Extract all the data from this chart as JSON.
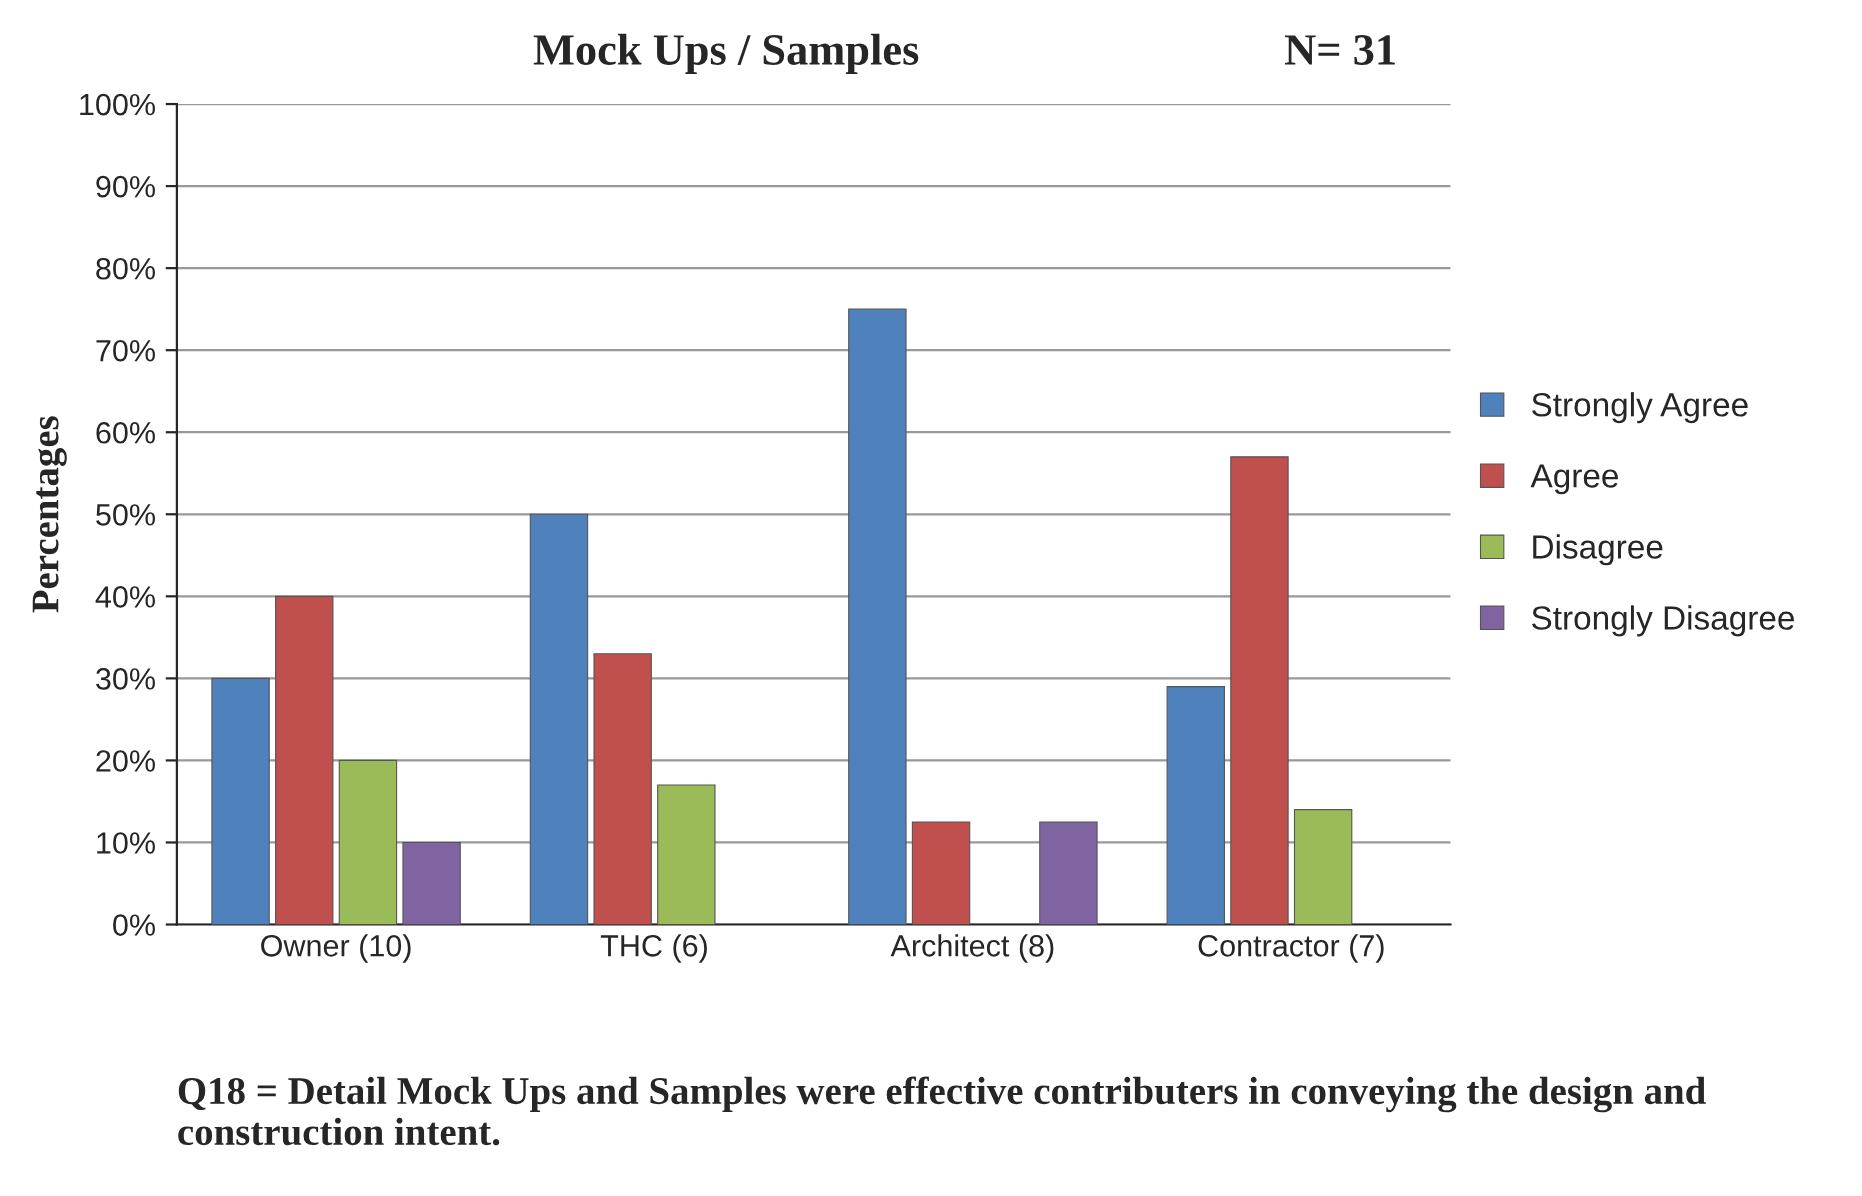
{
  "chart_data": {
    "type": "bar",
    "title": "Mock Ups / Samples",
    "subtitle": "N= 31",
    "ylabel": "Percentages",
    "categories": [
      "Owner (10)",
      "THC (6)",
      "Architect (8)",
      "Contractor (7)"
    ],
    "series": [
      {
        "name": "Strongly Agree",
        "color": "#4f81bd",
        "values": [
          30,
          50,
          75,
          29
        ]
      },
      {
        "name": "Agree",
        "color": "#c0504d",
        "values": [
          40,
          33,
          12.5,
          57
        ]
      },
      {
        "name": "Disagree",
        "color": "#9bbb59",
        "values": [
          20,
          17,
          null,
          14
        ]
      },
      {
        "name": "Strongly Disagree",
        "color": "#8064a2",
        "values": [
          10,
          null,
          12.5,
          null
        ]
      }
    ],
    "ylim": [
      0,
      100
    ],
    "yticks": [
      {
        "value": 0,
        "label": "0%"
      },
      {
        "value": 10,
        "label": "10%"
      },
      {
        "value": 20,
        "label": "20%"
      },
      {
        "value": 30,
        "label": "30%"
      },
      {
        "value": 40,
        "label": "40%"
      },
      {
        "value": 50,
        "label": "50%"
      },
      {
        "value": 60,
        "label": "60%"
      },
      {
        "value": 70,
        "label": "70%"
      },
      {
        "value": 80,
        "label": "80%"
      },
      {
        "value": 90,
        "label": "90%"
      },
      {
        "value": 100,
        "label": "100%"
      }
    ],
    "grid": "y",
    "legend": "right",
    "annotations": [
      "Q18 = Detail Mock Ups and Samples were effective contributers in conveying the design and construction intent."
    ]
  }
}
